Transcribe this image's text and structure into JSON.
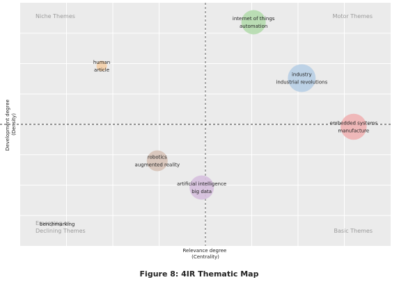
{
  "chart_data": {
    "type": "scatter",
    "xlabel": [
      "Relevance degree",
      "(Centrality)"
    ],
    "ylabel": [
      "Development degree",
      "(Density)"
    ],
    "xlim": [
      0,
      1
    ],
    "ylim": [
      0,
      1
    ],
    "x_divider": 0.5,
    "y_divider": 0.5,
    "grid": true,
    "quadrants": {
      "top_left": [
        "Niche Themes"
      ],
      "top_right": [
        "Motor Themes"
      ],
      "bottom_left": [
        "Emerging or",
        "Declining Themes"
      ],
      "bottom_right": [
        "Basic Themes"
      ]
    },
    "points": [
      {
        "lines": [
          "internet of things",
          "automation"
        ],
        "x": 0.63,
        "y": 0.92,
        "size": 14,
        "color": "#b5dcae"
      },
      {
        "lines": [
          "human",
          "article"
        ],
        "x": 0.22,
        "y": 0.74,
        "size": 6,
        "color": "#f4cfa8"
      },
      {
        "lines": [
          "industry",
          "industrial revolutions"
        ],
        "x": 0.76,
        "y": 0.69,
        "size": 16,
        "color": "#b8cfe6"
      },
      {
        "lines": [
          "embedded systems",
          "manufacture"
        ],
        "x": 0.9,
        "y": 0.49,
        "size": 15,
        "color": "#f0b3b4"
      },
      {
        "lines": [
          "robotics",
          "augmented reality"
        ],
        "x": 0.37,
        "y": 0.35,
        "size": 12,
        "color": "#d7c3b8"
      },
      {
        "lines": [
          "artificial intelligence",
          "big data"
        ],
        "x": 0.49,
        "y": 0.24,
        "size": 14,
        "color": "#d6c0de"
      },
      {
        "lines": [
          "benchmarking"
        ],
        "x": 0.1,
        "y": 0.09,
        "size": 0,
        "color": "#cccccc"
      }
    ]
  },
  "caption": "Figure 8: 4IR Thematic Map"
}
